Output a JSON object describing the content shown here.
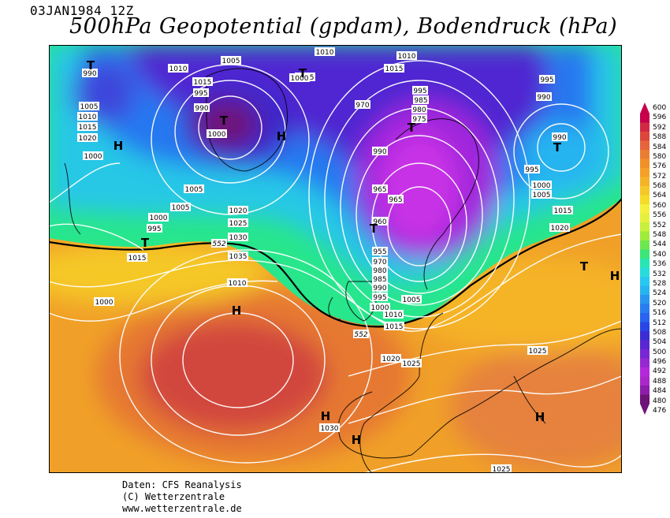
{
  "header": {
    "date": "03JAN1984 12Z",
    "title": "500hPa Geopotential (gpdam), Bodendruck (hPa)"
  },
  "footer": {
    "line1": "Daten: CFS Reanalysis",
    "line2": "(C) Wetterzentrale",
    "line3": "www.wetterzentrale.de"
  },
  "colorbar": {
    "labels": [
      "600",
      "596",
      "592",
      "588",
      "584",
      "580",
      "576",
      "572",
      "568",
      "564",
      "560",
      "556",
      "552",
      "548",
      "544",
      "540",
      "536",
      "532",
      "528",
      "524",
      "520",
      "516",
      "512",
      "508",
      "504",
      "500",
      "496",
      "492",
      "488",
      "484",
      "480",
      "476"
    ],
    "colors": [
      "#c8004b",
      "#d22846",
      "#dc463c",
      "#e6643c",
      "#eb7d32",
      "#f09128",
      "#f5a028",
      "#f5b428",
      "#f5c828",
      "#f5dc28",
      "#f5f03c",
      "#e6f03c",
      "#c8f03c",
      "#a0eb3c",
      "#6ee650",
      "#3ce678",
      "#28e6b4",
      "#28dcdc",
      "#28c8f0",
      "#28b4f0",
      "#2896f0",
      "#287df0",
      "#2864f0",
      "#2846e6",
      "#3c2dd2",
      "#5a28d2",
      "#7828d2",
      "#9628d2",
      "#b428dc",
      "#aa28c8",
      "#8c1eaa",
      "#6e1478"
    ]
  },
  "map": {
    "pressure_labels": [
      "990",
      "1010",
      "1005",
      "1015",
      "1010",
      "1015",
      "1000",
      "995",
      "990",
      "1000",
      "1005",
      "1010",
      "1015",
      "1020",
      "1000",
      "1005",
      "1005",
      "1000",
      "995",
      "1015",
      "1020",
      "1025",
      "1030",
      "1035",
      "1010",
      "1000",
      "1010",
      "1015",
      "995",
      "985",
      "980",
      "975",
      "970",
      "990",
      "965",
      "965",
      "960",
      "955",
      "970",
      "980",
      "985",
      "990",
      "995",
      "1000",
      "1005",
      "1010",
      "1015",
      "995",
      "990",
      "990",
      "995",
      "1000",
      "1005",
      "1015",
      "1020",
      "1025",
      "1020",
      "1025",
      "1030",
      "1025"
    ],
    "height_labels": [
      "552",
      "552"
    ],
    "symbols": [
      "T",
      "H",
      "T",
      "H",
      "T",
      "T",
      "T",
      "T",
      "H",
      "T",
      "H",
      "H",
      "H",
      "T",
      "H"
    ]
  }
}
